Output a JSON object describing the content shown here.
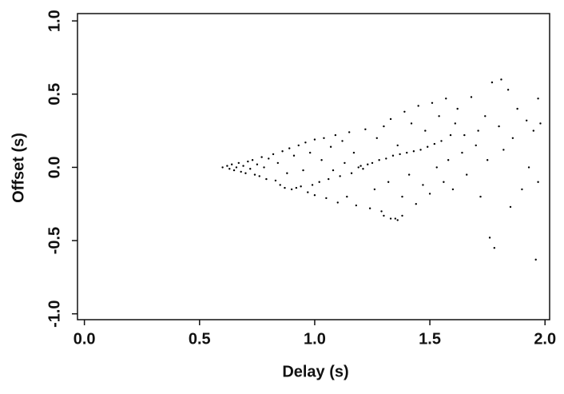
{
  "chart_data": {
    "type": "scatter",
    "x_label": "Delay (s)",
    "y_label": "Offset (s)",
    "x": [
      0.6,
      0.62,
      0.63,
      0.64,
      0.65,
      0.66,
      0.67,
      0.68,
      0.69,
      0.7,
      0.71,
      0.72,
      0.73,
      0.74,
      0.75,
      0.76,
      0.77,
      0.78,
      0.79,
      0.8,
      0.82,
      0.83,
      0.84,
      0.85,
      0.86,
      0.87,
      0.88,
      0.89,
      0.9,
      0.91,
      0.92,
      0.93,
      0.94,
      0.95,
      0.96,
      0.97,
      0.98,
      0.99,
      1.0,
      1.0,
      1.02,
      1.03,
      1.04,
      1.05,
      1.06,
      1.07,
      1.08,
      1.09,
      1.1,
      1.11,
      1.12,
      1.13,
      1.14,
      1.15,
      1.16,
      1.17,
      1.18,
      1.19,
      1.2,
      1.21,
      1.22,
      1.23,
      1.24,
      1.25,
      1.26,
      1.27,
      1.28,
      1.29,
      1.3,
      1.31,
      1.32,
      1.33,
      1.34,
      1.35,
      1.36,
      1.37,
      1.38,
      1.39,
      1.4,
      1.41,
      1.42,
      1.43,
      1.44,
      1.45,
      1.46,
      1.47,
      1.48,
      1.49,
      1.5,
      1.51,
      1.52,
      1.53,
      1.54,
      1.55,
      1.56,
      1.57,
      1.58,
      1.59,
      1.6,
      1.61,
      1.62,
      1.64,
      1.65,
      1.66,
      1.68,
      1.7,
      1.71,
      1.72,
      1.74,
      1.75,
      1.76,
      1.77,
      1.78,
      1.8,
      1.81,
      1.82,
      1.84,
      1.85,
      1.86,
      1.88,
      1.9,
      1.92,
      1.93,
      1.95,
      1.96,
      1.97,
      1.97,
      1.98,
      1.3,
      1.33,
      1.36,
      1.38
    ],
    "y": [
      0.0,
      0.01,
      -0.01,
      0.02,
      -0.02,
      0.0,
      0.03,
      -0.03,
      0.01,
      -0.04,
      0.04,
      -0.01,
      0.05,
      -0.05,
      0.02,
      -0.06,
      0.07,
      0.0,
      -0.08,
      0.06,
      0.09,
      -0.09,
      0.03,
      -0.12,
      0.11,
      -0.14,
      -0.04,
      0.13,
      -0.15,
      0.08,
      -0.14,
      0.15,
      -0.13,
      -0.02,
      0.17,
      -0.17,
      0.1,
      -0.12,
      0.19,
      -0.19,
      -0.1,
      0.05,
      0.2,
      -0.21,
      -0.08,
      0.14,
      -0.02,
      0.22,
      -0.24,
      -0.06,
      0.18,
      0.03,
      -0.2,
      0.24,
      -0.04,
      0.1,
      -0.26,
      0.0,
      0.01,
      -0.01,
      0.26,
      0.02,
      -0.28,
      0.03,
      -0.15,
      0.2,
      0.05,
      -0.3,
      0.28,
      0.06,
      -0.1,
      0.33,
      0.08,
      -0.35,
      0.15,
      0.09,
      -0.2,
      0.38,
      0.1,
      -0.05,
      0.3,
      0.11,
      -0.25,
      0.42,
      0.12,
      -0.12,
      0.25,
      0.14,
      -0.18,
      0.44,
      0.16,
      0.0,
      0.35,
      0.18,
      -0.1,
      0.47,
      0.05,
      0.22,
      -0.15,
      0.3,
      0.4,
      0.1,
      0.22,
      -0.05,
      0.48,
      0.15,
      0.25,
      -0.2,
      0.35,
      0.05,
      -0.48,
      0.58,
      -0.55,
      0.28,
      0.6,
      0.12,
      0.53,
      -0.27,
      0.2,
      0.4,
      -0.15,
      0.32,
      0.0,
      0.25,
      -0.63,
      0.47,
      -0.1,
      0.3,
      -0.33,
      -0.35,
      -0.36,
      -0.33
    ],
    "color": "#000000",
    "xlim": [
      -0.03,
      2.02
    ],
    "ylim": [
      -1.04,
      1.05
    ],
    "xticks": [
      {
        "value": 0,
        "label": "0.0"
      },
      0.5,
      {
        "value": 1,
        "label": "1.0"
      },
      1.5,
      {
        "value": 2,
        "label": "2.0"
      }
    ],
    "yticks": [
      {
        "value": -1,
        "label": "-1.0"
      },
      -0.5,
      {
        "value": 0,
        "label": "0.0"
      },
      0.5,
      {
        "value": 1,
        "label": "1.0"
      }
    ]
  }
}
